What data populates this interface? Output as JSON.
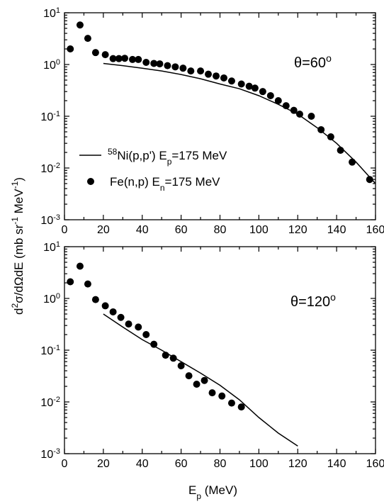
{
  "chart_data": [
    {
      "type": "scatter",
      "annotation": {
        "prefix": "θ=60",
        "superscript": "o"
      },
      "xlim": [
        0,
        160
      ],
      "ylim": [
        0.001,
        10
      ],
      "yscale": "log",
      "x_ticks": [
        0,
        20,
        40,
        60,
        80,
        100,
        120,
        140,
        160
      ],
      "y_ticks": [
        {
          "value": 10,
          "exp": "1"
        },
        {
          "value": 1,
          "exp": "0"
        },
        {
          "value": 0.1,
          "exp": "-1"
        },
        {
          "value": 0.01,
          "exp": "-2"
        },
        {
          "value": 0.001,
          "exp": "-3"
        }
      ],
      "legend": {
        "placement": "left-middle",
        "entries": [
          {
            "kind": "line",
            "superscript": "58",
            "text": "Ni(p,p') E",
            "subscript": "p",
            "suffix": "=175 MeV"
          },
          {
            "kind": "marker",
            "text": "Fe(n,p) E",
            "subscript": "n",
            "suffix": "=175 MeV"
          }
        ]
      },
      "series": [
        {
          "kind": "markers",
          "x": [
            3,
            8,
            12,
            16,
            21,
            25,
            28,
            31,
            35,
            38,
            42,
            46,
            49,
            53,
            57,
            61,
            65,
            70,
            74,
            78,
            82,
            86,
            91,
            95,
            98,
            102,
            106,
            110,
            114,
            118,
            121,
            127,
            132,
            137,
            142,
            148,
            157
          ],
          "y": [
            2.0,
            5.8,
            3.2,
            1.7,
            1.55,
            1.3,
            1.3,
            1.32,
            1.25,
            1.25,
            1.1,
            1.05,
            1.03,
            0.95,
            0.9,
            0.85,
            0.75,
            0.75,
            0.65,
            0.6,
            0.55,
            0.48,
            0.42,
            0.38,
            0.35,
            0.3,
            0.25,
            0.2,
            0.16,
            0.13,
            0.11,
            0.1,
            0.055,
            0.04,
            0.022,
            0.013,
            0.006
          ]
        },
        {
          "kind": "line",
          "x": [
            20,
            30,
            40,
            50,
            60,
            70,
            80,
            90,
            100,
            110,
            120,
            130,
            140,
            150,
            160
          ],
          "y": [
            1.05,
            0.95,
            0.85,
            0.75,
            0.64,
            0.53,
            0.42,
            0.34,
            0.25,
            0.17,
            0.11,
            0.06,
            0.03,
            0.013,
            0.005
          ]
        }
      ]
    },
    {
      "type": "scatter",
      "annotation": {
        "prefix": "θ=120",
        "superscript": "o"
      },
      "xlim": [
        0,
        160
      ],
      "ylim": [
        0.001,
        10
      ],
      "yscale": "log",
      "x_ticks": [
        0,
        20,
        40,
        60,
        80,
        100,
        120,
        140,
        160
      ],
      "y_ticks": [
        {
          "value": 10,
          "exp": "1"
        },
        {
          "value": 1,
          "exp": "0"
        },
        {
          "value": 0.1,
          "exp": "-1"
        },
        {
          "value": 0.01,
          "exp": "-2"
        },
        {
          "value": 0.001,
          "exp": "-3"
        }
      ],
      "xlabel": {
        "main": "E",
        "subscript": "p",
        "suffix": " (MeV)"
      },
      "series": [
        {
          "kind": "markers",
          "x": [
            3,
            8,
            12,
            16,
            21,
            25,
            29,
            33,
            38,
            42,
            46,
            52,
            56,
            60,
            64,
            68,
            72,
            76,
            81,
            86,
            91
          ],
          "y": [
            2.1,
            4.2,
            1.9,
            0.95,
            0.72,
            0.55,
            0.43,
            0.32,
            0.28,
            0.2,
            0.13,
            0.08,
            0.07,
            0.05,
            0.032,
            0.022,
            0.026,
            0.015,
            0.013,
            0.0095,
            0.008
          ]
        },
        {
          "kind": "line",
          "x": [
            20,
            30,
            40,
            50,
            60,
            70,
            80,
            90,
            100,
            110,
            120
          ],
          "y": [
            0.5,
            0.28,
            0.16,
            0.1,
            0.06,
            0.036,
            0.021,
            0.011,
            0.005,
            0.0025,
            0.0014
          ]
        }
      ]
    }
  ],
  "shared_ylabel": {
    "d_sup": "2",
    "main": "σ/dΩdE (mb sr",
    "sr_exp": "-1",
    "mid": " MeV",
    "mev_exp": "-1",
    "close": ")"
  }
}
